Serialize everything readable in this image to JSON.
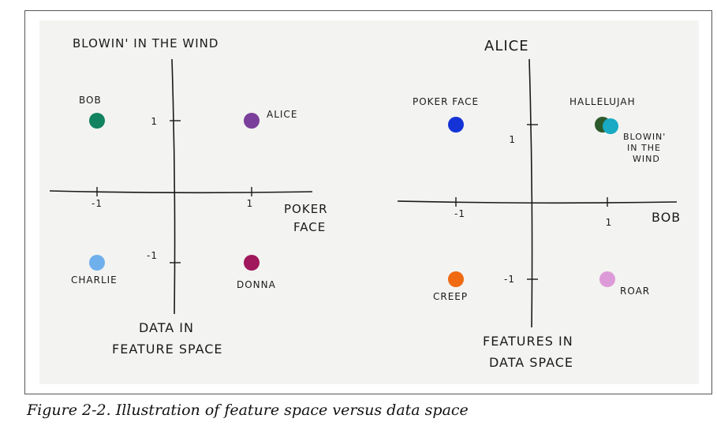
{
  "caption": "Figure 2-2. Illustration of feature space versus data space",
  "colors": {
    "bob": "#11835f",
    "alice": "#7a3f9a",
    "charlie": "#6fb0ec",
    "donna": "#a0175c",
    "pokerface": "#1433d6",
    "hallelujah": "#2d5a2c",
    "blowin": "#19aac4",
    "creep": "#f06a12",
    "roar": "#dd9ad8"
  },
  "chart_data": [
    {
      "type": "scatter",
      "title": "DATA IN FEATURE SPACE",
      "xlabel": "POKER FACE",
      "ylabel": "BLOWIN' IN THE WIND",
      "xlim": [
        -1,
        1
      ],
      "ylim": [
        -1,
        1
      ],
      "x_ticks": [
        -1,
        1
      ],
      "y_ticks": [
        1,
        -1
      ],
      "x_tick_labels": [
        "-1",
        "1"
      ],
      "y_tick_labels": [
        "1",
        "-1"
      ],
      "points": [
        {
          "label": "BOB",
          "x": -1,
          "y": 1,
          "color": "#11835f"
        },
        {
          "label": "ALICE",
          "x": 1,
          "y": 1,
          "color": "#7a3f9a"
        },
        {
          "label": "CHARLIE",
          "x": -1,
          "y": -1,
          "color": "#6fb0ec"
        },
        {
          "label": "DONNA",
          "x": 1,
          "y": -1,
          "color": "#a0175c"
        }
      ]
    },
    {
      "type": "scatter",
      "title": "FEATURES IN DATA SPACE",
      "xlabel": "BOB",
      "ylabel": "ALICE",
      "xlim": [
        -1,
        1
      ],
      "ylim": [
        -1,
        1
      ],
      "x_ticks": [
        -1,
        1
      ],
      "y_ticks": [
        1,
        -1
      ],
      "x_tick_labels": [
        "-1",
        "1"
      ],
      "y_tick_labels": [
        "1",
        "-1"
      ],
      "points": [
        {
          "label": "POKER FACE",
          "x": -1,
          "y": 1,
          "color": "#1433d6"
        },
        {
          "label": "HALLELUJAH",
          "x": 1,
          "y": 1,
          "color": "#2d5a2c"
        },
        {
          "label": "BLOWIN' IN THE WIND",
          "x": 1,
          "y": 1,
          "color": "#19aac4"
        },
        {
          "label": "CREEP",
          "x": -1,
          "y": -1,
          "color": "#f06a12"
        },
        {
          "label": "ROAR",
          "x": 1,
          "y": -1,
          "color": "#dd9ad8"
        }
      ]
    }
  ]
}
